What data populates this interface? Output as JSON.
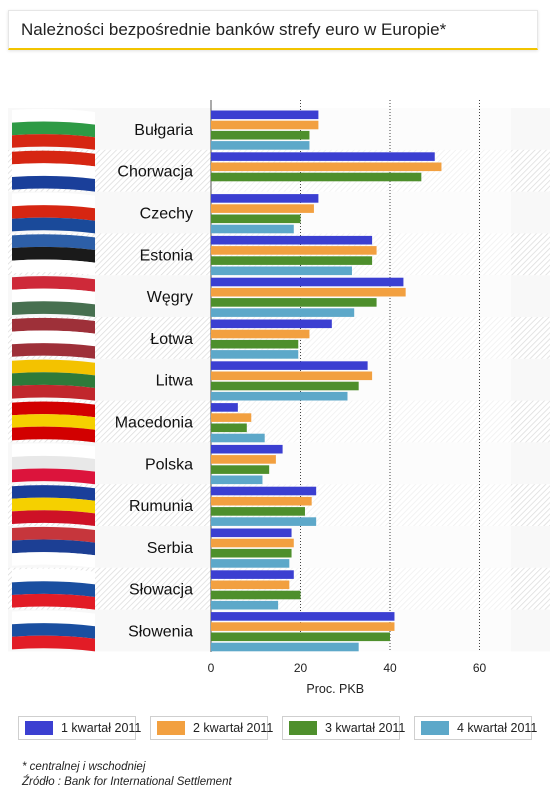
{
  "page": {
    "title": "Należności bezpośrednie banków strefy euro w Europie*"
  },
  "chart_data": {
    "type": "bar",
    "orientation": "horizontal",
    "categories": [
      "Bułgaria",
      "Chorwacja",
      "Czechy",
      "Estonia",
      "Węgry",
      "Łotwa",
      "Litwa",
      "Macedonia",
      "Polska",
      "Rumunia",
      "Serbia",
      "Słowacja",
      "Słowenia"
    ],
    "series": [
      {
        "name": "1 kwartał 2011",
        "color": "#3b3fd1",
        "values": [
          24,
          50,
          24,
          36,
          43,
          27,
          35,
          6,
          16,
          23.5,
          18,
          18.5,
          41
        ]
      },
      {
        "name": "2 kwartał 2011",
        "color": "#f2a040",
        "values": [
          24,
          51.5,
          23,
          37,
          43.5,
          22,
          36,
          9,
          14.5,
          22.5,
          18.5,
          17.5,
          41
        ]
      },
      {
        "name": "3 kwartał 2011",
        "color": "#4e8f2c",
        "values": [
          22,
          47,
          20,
          36,
          37,
          19.5,
          33,
          8,
          13,
          21,
          18,
          20,
          40
        ]
      },
      {
        "name": "4 kwartał 2011",
        "color": "#5da8c9",
        "values": [
          22,
          0,
          18.5,
          31.5,
          32,
          19.5,
          30.5,
          12,
          11.5,
          23.5,
          17.5,
          15,
          33
        ]
      }
    ],
    "xticks": [
      "0",
      "20",
      "40",
      "60"
    ],
    "xlim": [
      0,
      60
    ],
    "xlabel": "Proc. PKB",
    "grid": true,
    "legend_position": "bottom"
  },
  "notes": {
    "footnote": "* centralnej i wschodniej",
    "source": "Źródło : Bank for International Settlement"
  }
}
